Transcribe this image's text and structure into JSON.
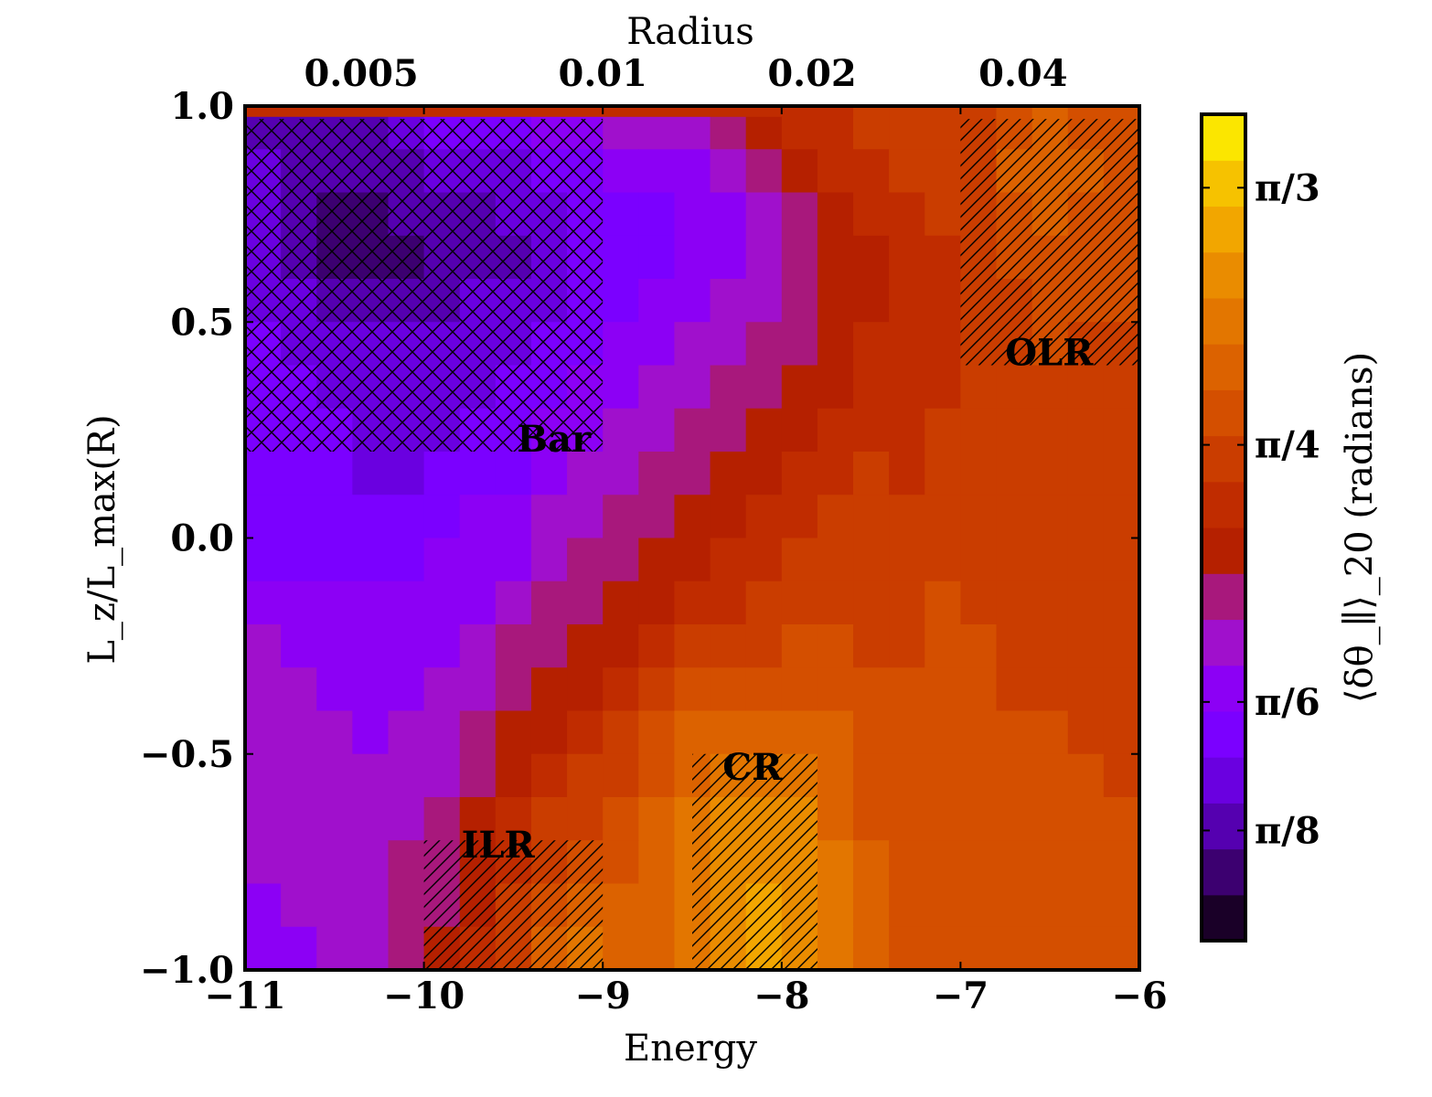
{
  "chart_data": {
    "type": "heatmap",
    "title": "",
    "xlabel": "Energy",
    "ylabel": "L_z/L_max(R)",
    "top_xlabel": "Radius",
    "colorbar_label": "⟨δθ_∥⟩_20 (radians)",
    "xlim": [
      -11,
      -6
    ],
    "ylim": [
      -1.0,
      1.0
    ],
    "x_ticks": [
      {
        "value": -11,
        "label": "−11"
      },
      {
        "value": -10,
        "label": "−10"
      },
      {
        "value": -9,
        "label": "−9"
      },
      {
        "value": -8,
        "label": "−8"
      },
      {
        "value": -7,
        "label": "−7"
      },
      {
        "value": -6,
        "label": "−6"
      }
    ],
    "y_ticks": [
      {
        "value": 1.0,
        "label": "1.0"
      },
      {
        "value": 0.5,
        "label": "0.5"
      },
      {
        "value": 0.0,
        "label": "0.0"
      },
      {
        "value": -0.5,
        "label": "−0.5"
      },
      {
        "value": -1.0,
        "label": "−1.0"
      }
    ],
    "top_x_ticks": [
      {
        "energy": -10.35,
        "label": "0.005"
      },
      {
        "energy": -9.0,
        "label": "0.01"
      },
      {
        "energy": -7.83,
        "label": "0.02"
      },
      {
        "energy": -6.65,
        "label": "0.04"
      }
    ],
    "colorbar": {
      "range_levels": [
        0,
        17
      ],
      "tick_labels": [
        {
          "level": 15.9,
          "label": "π/3"
        },
        {
          "level": 10.3,
          "label": "π/4"
        },
        {
          "level": 4.7,
          "label": "π/6"
        },
        {
          "level": 1.9,
          "label": "π/8"
        }
      ],
      "colors": [
        "#1a0028",
        "#3c0070",
        "#5500b0",
        "#6a00e0",
        "#7b00ff",
        "#8c00f5",
        "#a010cc",
        "#a8187c",
        "#b52000",
        "#c02c00",
        "#ca3d00",
        "#d44f00",
        "#dc6200",
        "#e37600",
        "#ea8c00",
        "#f2a600",
        "#f6c200",
        "#fbe600"
      ]
    },
    "grid": false,
    "x_centers": [
      -10.9,
      -10.7,
      -10.5,
      -10.3,
      -10.1,
      -9.9,
      -9.7,
      -9.5,
      -9.3,
      -9.1,
      -8.9,
      -8.7,
      -8.5,
      -8.3,
      -8.1,
      -7.9,
      -7.7,
      -7.5,
      -7.3,
      -7.1,
      -6.9,
      -6.7,
      -6.5,
      -6.3,
      -6.1
    ],
    "y_centers": [
      0.95,
      0.85,
      0.75,
      0.65,
      0.55,
      0.45,
      0.35,
      0.25,
      0.15,
      0.05,
      -0.05,
      -0.15,
      -0.25,
      -0.35,
      -0.45,
      -0.55,
      -0.65,
      -0.75,
      -0.85,
      -0.95
    ],
    "levels": [
      [
        2,
        2,
        2,
        2,
        3,
        4,
        4,
        4,
        5,
        5,
        6,
        6,
        6,
        7,
        8,
        9,
        9,
        10,
        10,
        10,
        10,
        11,
        12,
        11,
        11
      ],
      [
        3,
        2,
        2,
        2,
        2,
        3,
        3,
        3,
        4,
        4,
        5,
        5,
        5,
        6,
        7,
        8,
        9,
        9,
        10,
        10,
        10,
        12,
        12,
        12,
        11
      ],
      [
        3,
        2,
        1,
        1,
        2,
        2,
        2,
        3,
        3,
        4,
        4,
        4,
        5,
        5,
        6,
        7,
        8,
        9,
        9,
        10,
        10,
        11,
        12,
        11,
        11
      ],
      [
        3,
        2,
        1,
        1,
        1,
        2,
        2,
        2,
        3,
        4,
        4,
        4,
        5,
        5,
        6,
        7,
        8,
        8,
        9,
        9,
        10,
        11,
        11,
        11,
        11
      ],
      [
        3,
        3,
        2,
        2,
        2,
        2,
        3,
        3,
        3,
        4,
        4,
        5,
        5,
        6,
        6,
        7,
        8,
        8,
        9,
        9,
        10,
        10,
        11,
        11,
        11
      ],
      [
        4,
        3,
        3,
        3,
        3,
        3,
        3,
        3,
        4,
        4,
        5,
        5,
        6,
        6,
        7,
        7,
        8,
        9,
        9,
        9,
        10,
        10,
        11,
        10,
        10
      ],
      [
        4,
        4,
        3,
        3,
        3,
        3,
        3,
        4,
        4,
        5,
        5,
        6,
        6,
        7,
        7,
        8,
        8,
        9,
        9,
        9,
        10,
        10,
        10,
        10,
        10
      ],
      [
        4,
        4,
        4,
        3,
        3,
        3,
        4,
        4,
        5,
        5,
        6,
        6,
        7,
        7,
        8,
        8,
        9,
        9,
        9,
        10,
        10,
        10,
        10,
        10,
        10
      ],
      [
        4,
        4,
        4,
        3,
        3,
        4,
        4,
        4,
        5,
        6,
        6,
        7,
        7,
        8,
        8,
        9,
        9,
        10,
        9,
        10,
        10,
        10,
        10,
        10,
        10
      ],
      [
        4,
        4,
        4,
        4,
        4,
        4,
        5,
        5,
        6,
        6,
        7,
        7,
        8,
        8,
        9,
        9,
        10,
        10,
        10,
        10,
        10,
        10,
        10,
        10,
        10
      ],
      [
        4,
        4,
        4,
        4,
        4,
        5,
        5,
        5,
        6,
        7,
        7,
        8,
        8,
        9,
        9,
        10,
        10,
        10,
        10,
        10,
        10,
        10,
        10,
        10,
        10
      ],
      [
        5,
        5,
        5,
        5,
        5,
        5,
        5,
        6,
        7,
        7,
        8,
        8,
        9,
        9,
        10,
        10,
        10,
        10,
        10,
        11,
        10,
        10,
        10,
        10,
        10
      ],
      [
        6,
        5,
        5,
        5,
        5,
        5,
        6,
        7,
        7,
        8,
        8,
        9,
        10,
        10,
        10,
        11,
        11,
        10,
        10,
        11,
        11,
        10,
        10,
        10,
        10
      ],
      [
        6,
        6,
        5,
        5,
        5,
        6,
        6,
        7,
        8,
        8,
        9,
        10,
        11,
        11,
        11,
        11,
        11,
        11,
        11,
        11,
        11,
        10,
        10,
        10,
        10
      ],
      [
        6,
        6,
        6,
        5,
        6,
        6,
        7,
        8,
        8,
        9,
        10,
        11,
        12,
        12,
        12,
        12,
        12,
        11,
        11,
        11,
        11,
        11,
        11,
        10,
        10
      ],
      [
        6,
        6,
        6,
        6,
        6,
        6,
        7,
        8,
        9,
        10,
        10,
        11,
        12,
        13,
        13,
        13,
        12,
        11,
        11,
        11,
        11,
        11,
        11,
        11,
        10
      ],
      [
        6,
        6,
        6,
        6,
        6,
        7,
        8,
        9,
        10,
        10,
        11,
        12,
        13,
        14,
        14,
        14,
        12,
        11,
        11,
        11,
        11,
        11,
        11,
        11,
        11
      ],
      [
        6,
        6,
        6,
        6,
        7,
        7,
        8,
        9,
        10,
        11,
        11,
        12,
        13,
        14,
        14,
        14,
        13,
        12,
        11,
        11,
        11,
        11,
        11,
        11,
        11
      ],
      [
        5,
        6,
        6,
        6,
        7,
        7,
        8,
        10,
        11,
        12,
        12,
        12,
        13,
        14,
        15,
        14,
        13,
        12,
        11,
        11,
        11,
        11,
        11,
        11,
        11
      ],
      [
        5,
        5,
        6,
        6,
        7,
        8,
        9,
        10,
        12,
        13,
        12,
        12,
        13,
        14,
        15,
        14,
        13,
        12,
        11,
        11,
        11,
        11,
        11,
        11,
        11
      ]
    ],
    "top_row_level": 9,
    "hatched_regions": [
      {
        "label": "Bar",
        "pattern": "crosshatch",
        "x": [
          -11,
          -9
        ],
        "y": [
          0.2,
          0.97
        ],
        "label_at": [
          -9.48,
          0.2
        ]
      },
      {
        "label": "OLR",
        "pattern": "diagonal",
        "x": [
          -7,
          -6
        ],
        "y": [
          0.4,
          0.97
        ],
        "label_at": [
          -6.75,
          0.4
        ]
      },
      {
        "label": "CR",
        "pattern": "diagonal",
        "x": [
          -8.5,
          -7.8
        ],
        "y": [
          -1.0,
          -0.5
        ],
        "label_at": [
          -8.33,
          -0.56
        ]
      },
      {
        "label": "ILR",
        "pattern": "diagonal",
        "x": [
          -10,
          -9
        ],
        "y": [
          -1.0,
          -0.7
        ],
        "label_at": [
          -9.79,
          -0.74
        ]
      }
    ]
  }
}
